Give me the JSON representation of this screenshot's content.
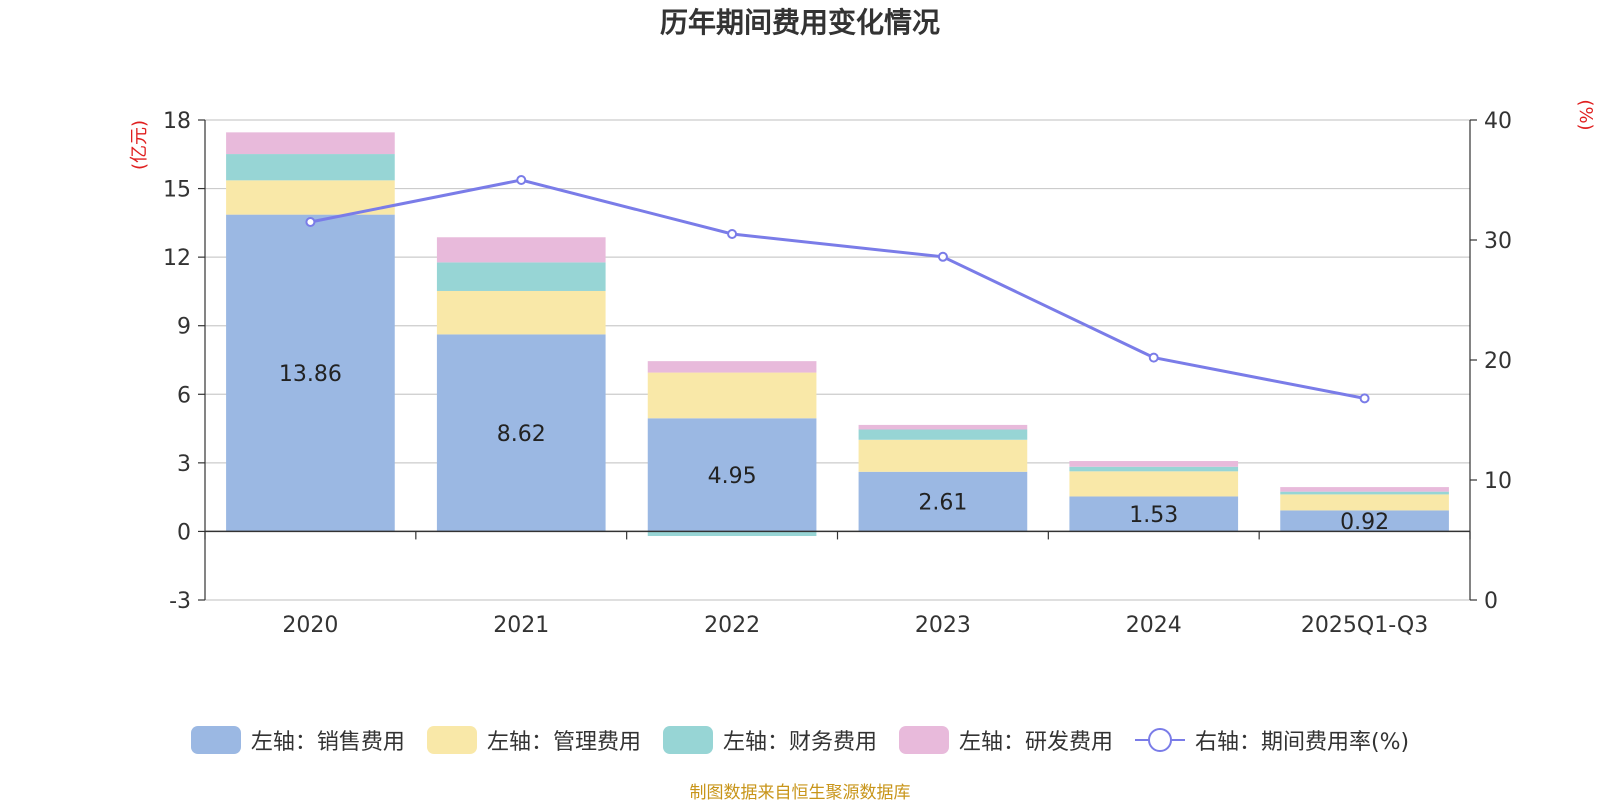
{
  "chart_data": {
    "type": "bar",
    "title": "历年期间费用变化情况",
    "categories": [
      "2020",
      "2021",
      "2022",
      "2023",
      "2024",
      "2025Q1-Q3"
    ],
    "left_axis": {
      "label": "(亿元)",
      "ticks": [
        -3,
        0,
        3,
        6,
        9,
        12,
        15,
        18
      ],
      "ylim": [
        -3,
        18
      ]
    },
    "right_axis": {
      "label": "(%)",
      "ticks": [
        0,
        10,
        20,
        30,
        40
      ],
      "ylim": [
        0,
        40
      ]
    },
    "series": [
      {
        "name": "左轴：销售费用",
        "axis": "left",
        "color": "#9bb8e3",
        "values": [
          13.86,
          8.62,
          4.95,
          2.61,
          1.53,
          0.92
        ],
        "labels": [
          "13.86",
          "8.62",
          "4.95",
          "2.61",
          "1.53",
          "0.92"
        ]
      },
      {
        "name": "左轴：管理费用",
        "axis": "left",
        "color": "#f9e8a8",
        "values": [
          1.5,
          1.9,
          2.0,
          1.4,
          1.1,
          0.7
        ]
      },
      {
        "name": "左轴：财务费用",
        "axis": "left",
        "color": "#97d5d5",
        "values": [
          1.15,
          1.25,
          -0.2,
          0.45,
          0.2,
          0.12
        ]
      },
      {
        "name": "左轴：研发费用",
        "axis": "left",
        "color": "#e8badb",
        "values": [
          0.95,
          1.1,
          0.5,
          0.2,
          0.25,
          0.2
        ]
      },
      {
        "name": "右轴：期间费用率(%)",
        "axis": "right",
        "color": "#7a7ce8",
        "type": "line",
        "values": [
          31.5,
          35.0,
          30.5,
          28.6,
          20.2,
          16.8
        ]
      }
    ],
    "grid": true,
    "legend_position": "bottom"
  },
  "footer": "制图数据来自恒生聚源数据库",
  "colors": {
    "title": "#333333",
    "axis_label": "#e02020",
    "grid": "#cccccc",
    "axis": "#333333",
    "footer": "#c8951a"
  }
}
